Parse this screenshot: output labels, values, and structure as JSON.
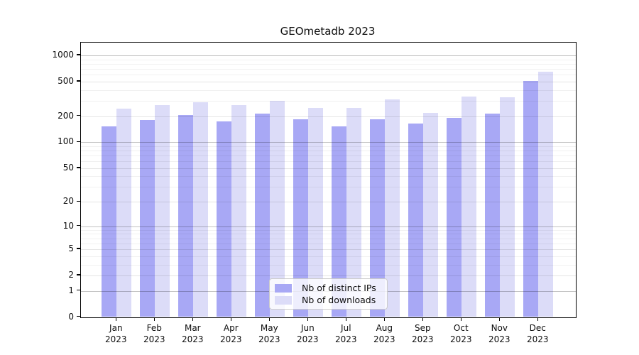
{
  "chart_data": {
    "type": "bar",
    "title": "GEOmetadb 2023",
    "categories": [
      {
        "month": "Jan",
        "year": "2023"
      },
      {
        "month": "Feb",
        "year": "2023"
      },
      {
        "month": "Mar",
        "year": "2023"
      },
      {
        "month": "Apr",
        "year": "2023"
      },
      {
        "month": "May",
        "year": "2023"
      },
      {
        "month": "Jun",
        "year": "2023"
      },
      {
        "month": "Jul",
        "year": "2023"
      },
      {
        "month": "Aug",
        "year": "2023"
      },
      {
        "month": "Sep",
        "year": "2023"
      },
      {
        "month": "Oct",
        "year": "2023"
      },
      {
        "month": "Nov",
        "year": "2023"
      },
      {
        "month": "Dec",
        "year": "2023"
      }
    ],
    "series": [
      {
        "name": "Nb of distinct IPs",
        "color": "#a8a8f5",
        "values": [
          151,
          179,
          207,
          173,
          212,
          183,
          151,
          184,
          165,
          190,
          213,
          505
        ]
      },
      {
        "name": "Nb of downloads",
        "color": "#dcdcf8",
        "values": [
          245,
          266,
          288,
          269,
          300,
          249,
          249,
          309,
          220,
          335,
          327,
          650
        ]
      }
    ],
    "yscale": "log1p",
    "ylim": [
      0,
      1400
    ],
    "yticks_labeled": [
      0,
      1,
      2,
      5,
      10,
      20,
      50,
      100,
      200,
      500,
      1000
    ],
    "yticks_major": [
      1,
      10,
      100,
      1000
    ],
    "yticks_minor": [
      3,
      4,
      6,
      7,
      8,
      9,
      30,
      40,
      60,
      70,
      80,
      90,
      300,
      400,
      600,
      700,
      800,
      900
    ],
    "grid": true,
    "legend_position": "lower center"
  }
}
